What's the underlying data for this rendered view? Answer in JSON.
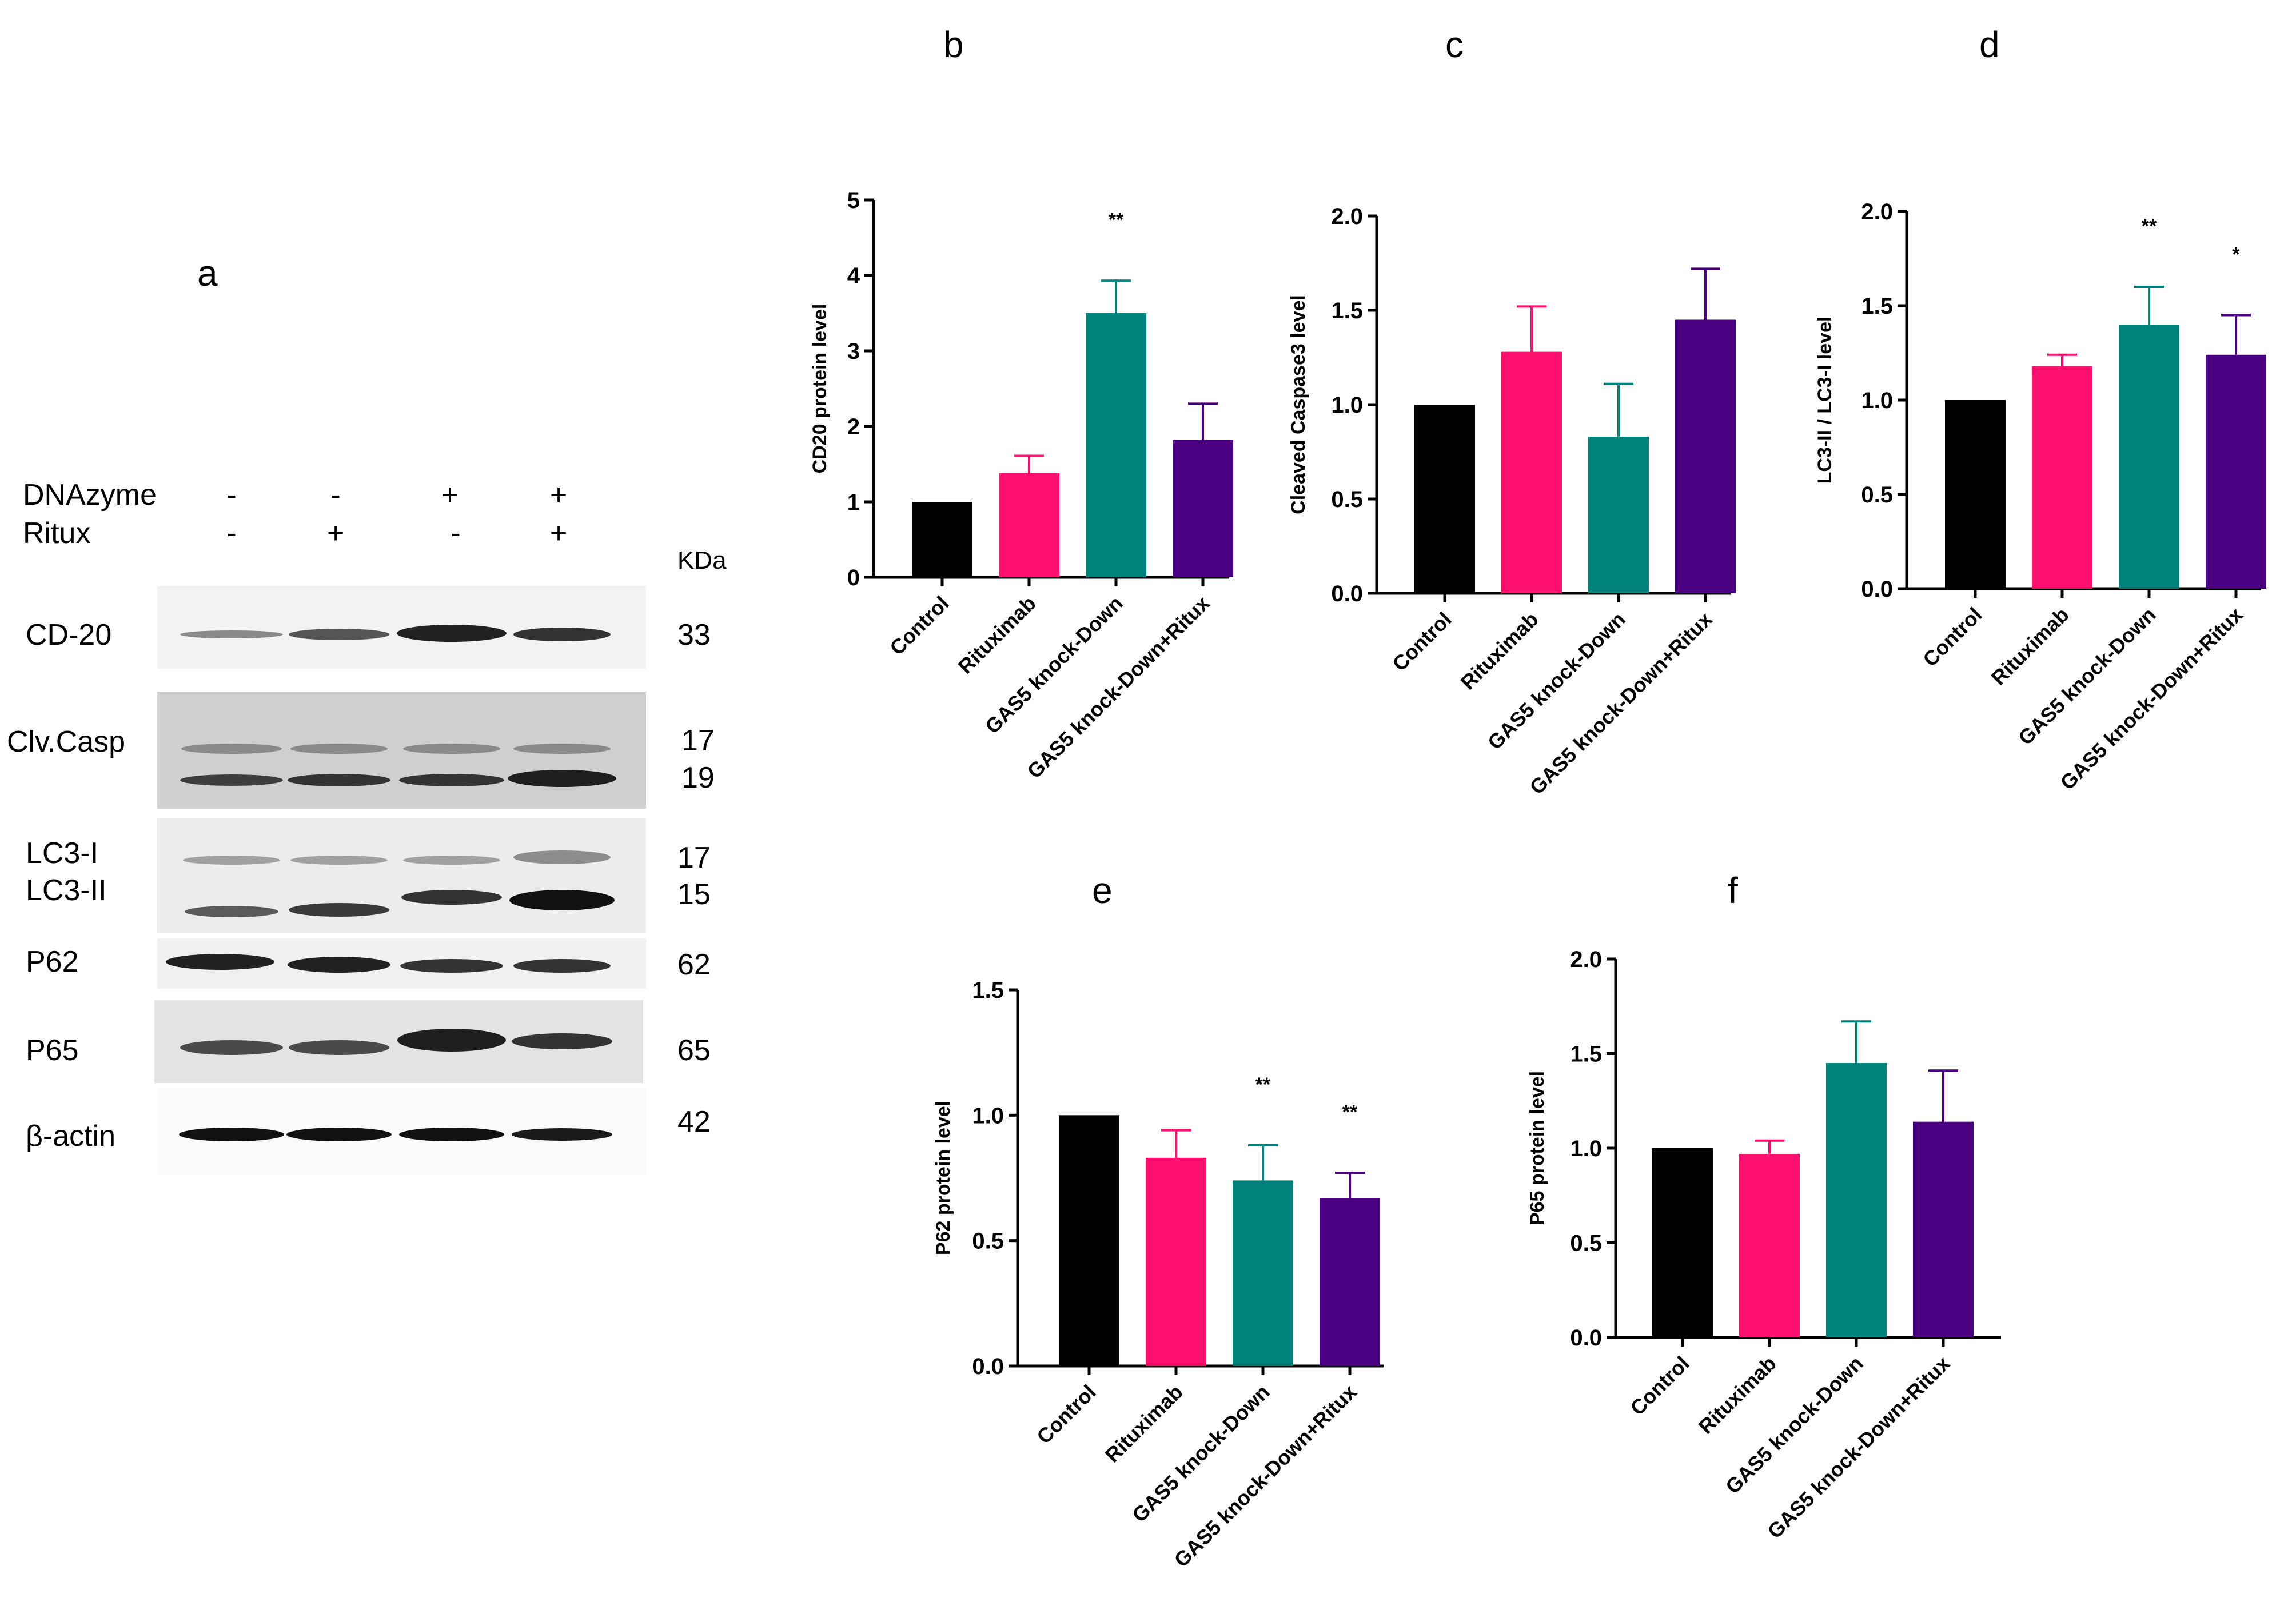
{
  "panels": {
    "a": "a",
    "b": "b",
    "c": "c",
    "d": "d",
    "e": "e",
    "f": "f"
  },
  "blot": {
    "conditions": [
      {
        "label": "DNAzyme",
        "values": [
          "-",
          "-",
          "+",
          "+"
        ]
      },
      {
        "label": "Ritux",
        "values": [
          "-",
          "+",
          "-",
          "+"
        ]
      }
    ],
    "kda_header": "KDa",
    "rows": [
      {
        "label": "CD-20",
        "kda": "33"
      },
      {
        "label": "Clv.Casp",
        "kda": "17"
      },
      {
        "label": "",
        "kda": "19"
      },
      {
        "label": "LC3-I",
        "kda": "17"
      },
      {
        "label": "LC3-II",
        "kda": "15"
      },
      {
        "label": "P62",
        "kda": "62"
      },
      {
        "label": "P65",
        "kda": "65"
      },
      {
        "label": "β-actin",
        "kda": "42"
      }
    ]
  },
  "colors": {
    "Control": "#000000",
    "Rituximab": "#ff0f6e",
    "GAS5 knock-Down": "#00827c",
    "GAS5 knock-Down+Ritux": "#4b0082"
  },
  "chart_data": [
    {
      "panel": "b",
      "type": "bar",
      "categories": [
        "Control",
        "Rituximab",
        "GAS5 knock-Down",
        "GAS5 knock-Down+Ritux"
      ],
      "values": [
        1.0,
        1.38,
        3.5,
        1.82
      ],
      "errors": [
        0,
        0.23,
        0.43,
        0.48
      ],
      "significance": [
        "",
        "",
        "**",
        ""
      ],
      "ylabel": "CD20 protein level",
      "ylim": [
        0,
        5
      ],
      "yticks": [
        "0",
        "1",
        "2",
        "3",
        "4",
        "5"
      ],
      "ytick_values": [
        0,
        1,
        2,
        3,
        4,
        5
      ]
    },
    {
      "panel": "c",
      "type": "bar",
      "categories": [
        "Control",
        "Rituximab",
        "GAS5 knock-Down",
        "GAS5 knock-Down+Ritux"
      ],
      "values": [
        1.0,
        1.28,
        0.83,
        1.45
      ],
      "errors": [
        0,
        0.24,
        0.28,
        0.27
      ],
      "significance": [
        "",
        "",
        "",
        ""
      ],
      "ylabel": "Cleaved Caspase3 level",
      "ylim": [
        0,
        2
      ],
      "yticks": [
        "0.0",
        "0.5",
        "1.0",
        "1.5",
        "2.0"
      ],
      "ytick_values": [
        0,
        0.5,
        1,
        1.5,
        2
      ]
    },
    {
      "panel": "d",
      "type": "bar",
      "categories": [
        "Control",
        "Rituximab",
        "GAS5 knock-Down",
        "GAS5 knock-Down+Ritux"
      ],
      "values": [
        1.0,
        1.18,
        1.4,
        1.24
      ],
      "errors": [
        0,
        0.06,
        0.2,
        0.21
      ],
      "significance": [
        "",
        "",
        "**",
        "*"
      ],
      "ylabel": "LC3-II / LC3-I level",
      "ylim": [
        0,
        2
      ],
      "yticks": [
        "0.0",
        "0.5",
        "1.0",
        "1.5",
        "2.0"
      ],
      "ytick_values": [
        0,
        0.5,
        1,
        1.5,
        2
      ]
    },
    {
      "panel": "e",
      "type": "bar",
      "categories": [
        "Control",
        "Rituximab",
        "GAS5 knock-Down",
        "GAS5 knock-Down+Ritux"
      ],
      "values": [
        1.0,
        0.83,
        0.74,
        0.67
      ],
      "errors": [
        0,
        0.11,
        0.14,
        0.1
      ],
      "significance": [
        "",
        "",
        "**",
        "**"
      ],
      "ylabel": "P62 protein level",
      "ylim": [
        0,
        1.5
      ],
      "yticks": [
        "0.0",
        "0.5",
        "1.0",
        "1.5"
      ],
      "ytick_values": [
        0,
        0.5,
        1,
        1.5
      ]
    },
    {
      "panel": "f",
      "type": "bar",
      "categories": [
        "Control",
        "Rituximab",
        "GAS5 knock-Down",
        "GAS5 knock-Down+Ritux"
      ],
      "values": [
        1.0,
        0.97,
        1.45,
        1.14
      ],
      "errors": [
        0,
        0.07,
        0.22,
        0.27
      ],
      "significance": [
        "",
        "",
        "",
        ""
      ],
      "ylabel": "P65 protein level",
      "ylim": [
        0,
        2
      ],
      "yticks": [
        "0.0",
        "0.5",
        "1.0",
        "1.5",
        "2.0"
      ],
      "ytick_values": [
        0,
        0.5,
        1,
        1.5,
        2
      ]
    }
  ]
}
